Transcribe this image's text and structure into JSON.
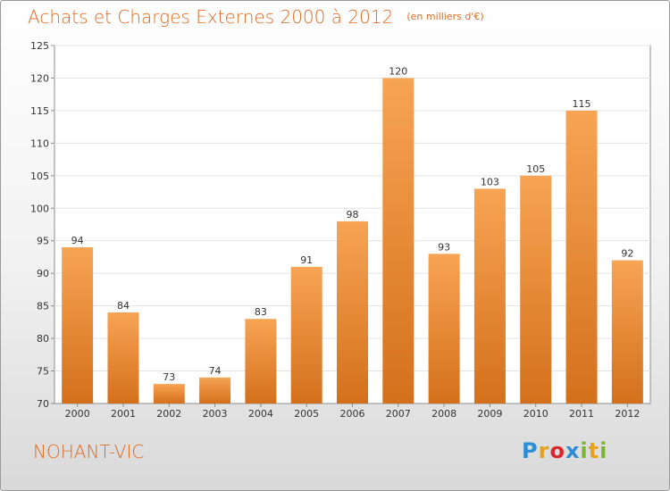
{
  "title": "Achats et Charges Externes 2000 à 2012",
  "subtitle": "(en milliers d'€)",
  "commune": "NOHANT-VIC",
  "brand": {
    "letters": [
      "P",
      "r",
      "o",
      "x",
      "i",
      "t",
      "i"
    ],
    "colors": [
      "#2a8fd6",
      "#e5a21a",
      "#d9272e",
      "#2a8fd6",
      "#7bb334",
      "#e5a21a",
      "#7bb334"
    ]
  },
  "colors": {
    "bar_top": "#f7a454",
    "bar_bottom": "#d4701c",
    "text_accent": "#de6a20"
  },
  "chart_data": {
    "type": "bar",
    "title": "Achats et Charges Externes 2000 à 2012",
    "subtitle": "(en milliers d'€)",
    "categories": [
      "2000",
      "2001",
      "2002",
      "2003",
      "2004",
      "2005",
      "2006",
      "2007",
      "2008",
      "2009",
      "2010",
      "2011",
      "2012"
    ],
    "values": [
      94,
      84,
      73,
      74,
      83,
      91,
      98,
      120,
      93,
      103,
      105,
      115,
      92
    ],
    "ylim": [
      70,
      125
    ],
    "yticks": [
      70,
      75,
      80,
      85,
      90,
      95,
      100,
      105,
      110,
      115,
      120,
      125
    ],
    "grid": true
  }
}
